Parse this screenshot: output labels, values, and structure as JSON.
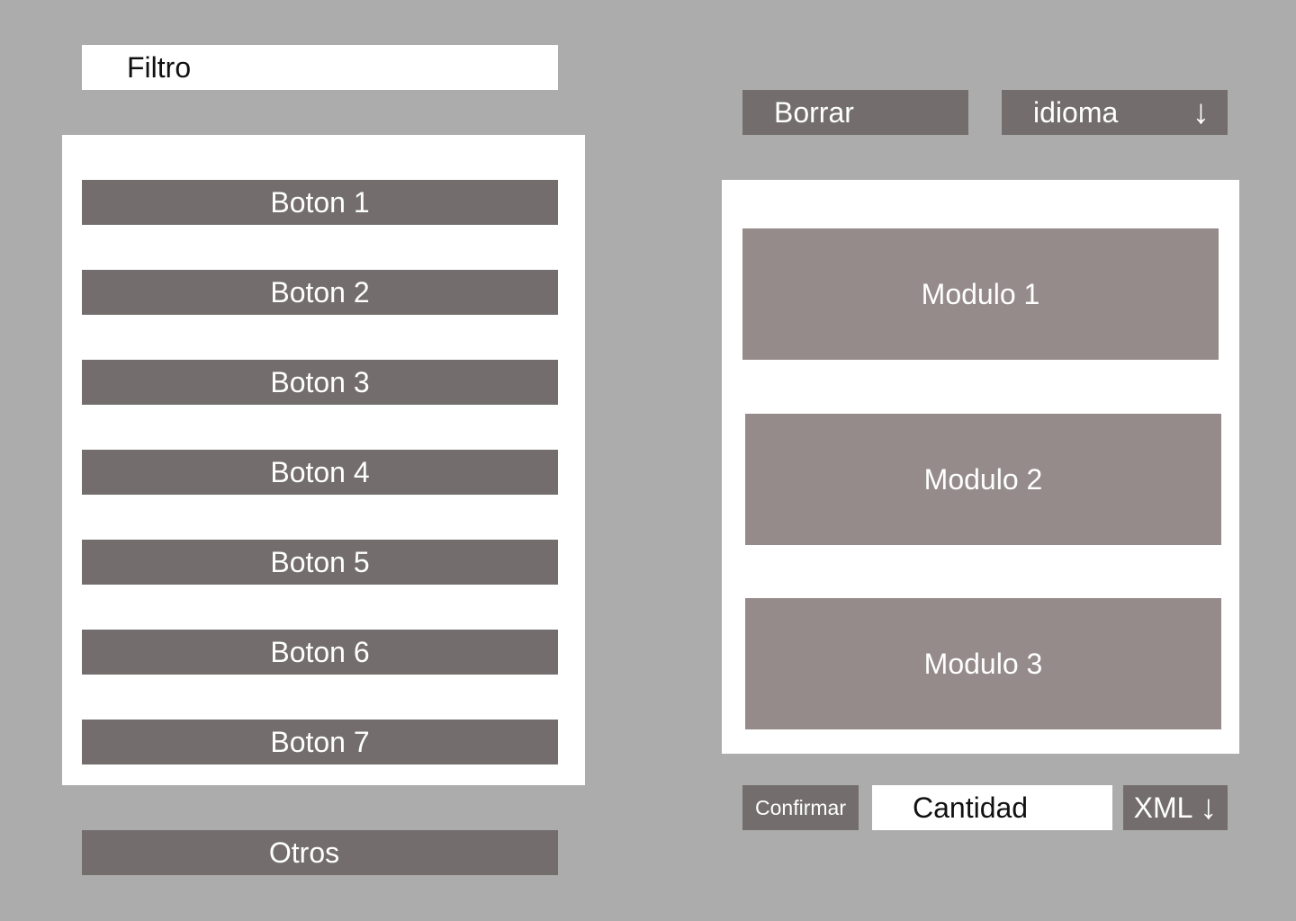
{
  "filter": {
    "placeholder": "Filtro"
  },
  "left_buttons": [
    {
      "label": "Boton 1"
    },
    {
      "label": "Boton 2"
    },
    {
      "label": "Boton 3"
    },
    {
      "label": "Boton 4"
    },
    {
      "label": "Boton 5"
    },
    {
      "label": "Boton 6"
    },
    {
      "label": "Boton 7"
    }
  ],
  "otros_label": "Otros",
  "toolbar": {
    "borrar_label": "Borrar",
    "idioma_label": "idioma",
    "idioma_arrow": "↓",
    "idioma_icon": "arrow-down-icon"
  },
  "modules": [
    {
      "label": "Modulo 1"
    },
    {
      "label": "Modulo 2"
    },
    {
      "label": "Modulo 3"
    }
  ],
  "footer": {
    "confirmar_label": "Confirmar",
    "cantidad_placeholder": "Cantidad",
    "xml_label": "XML",
    "xml_arrow": "↓",
    "xml_icon": "arrow-down-icon"
  },
  "colors": {
    "background": "#acacac",
    "button": "#736e6d",
    "module": "#958b8a",
    "panel": "#ffffff"
  }
}
